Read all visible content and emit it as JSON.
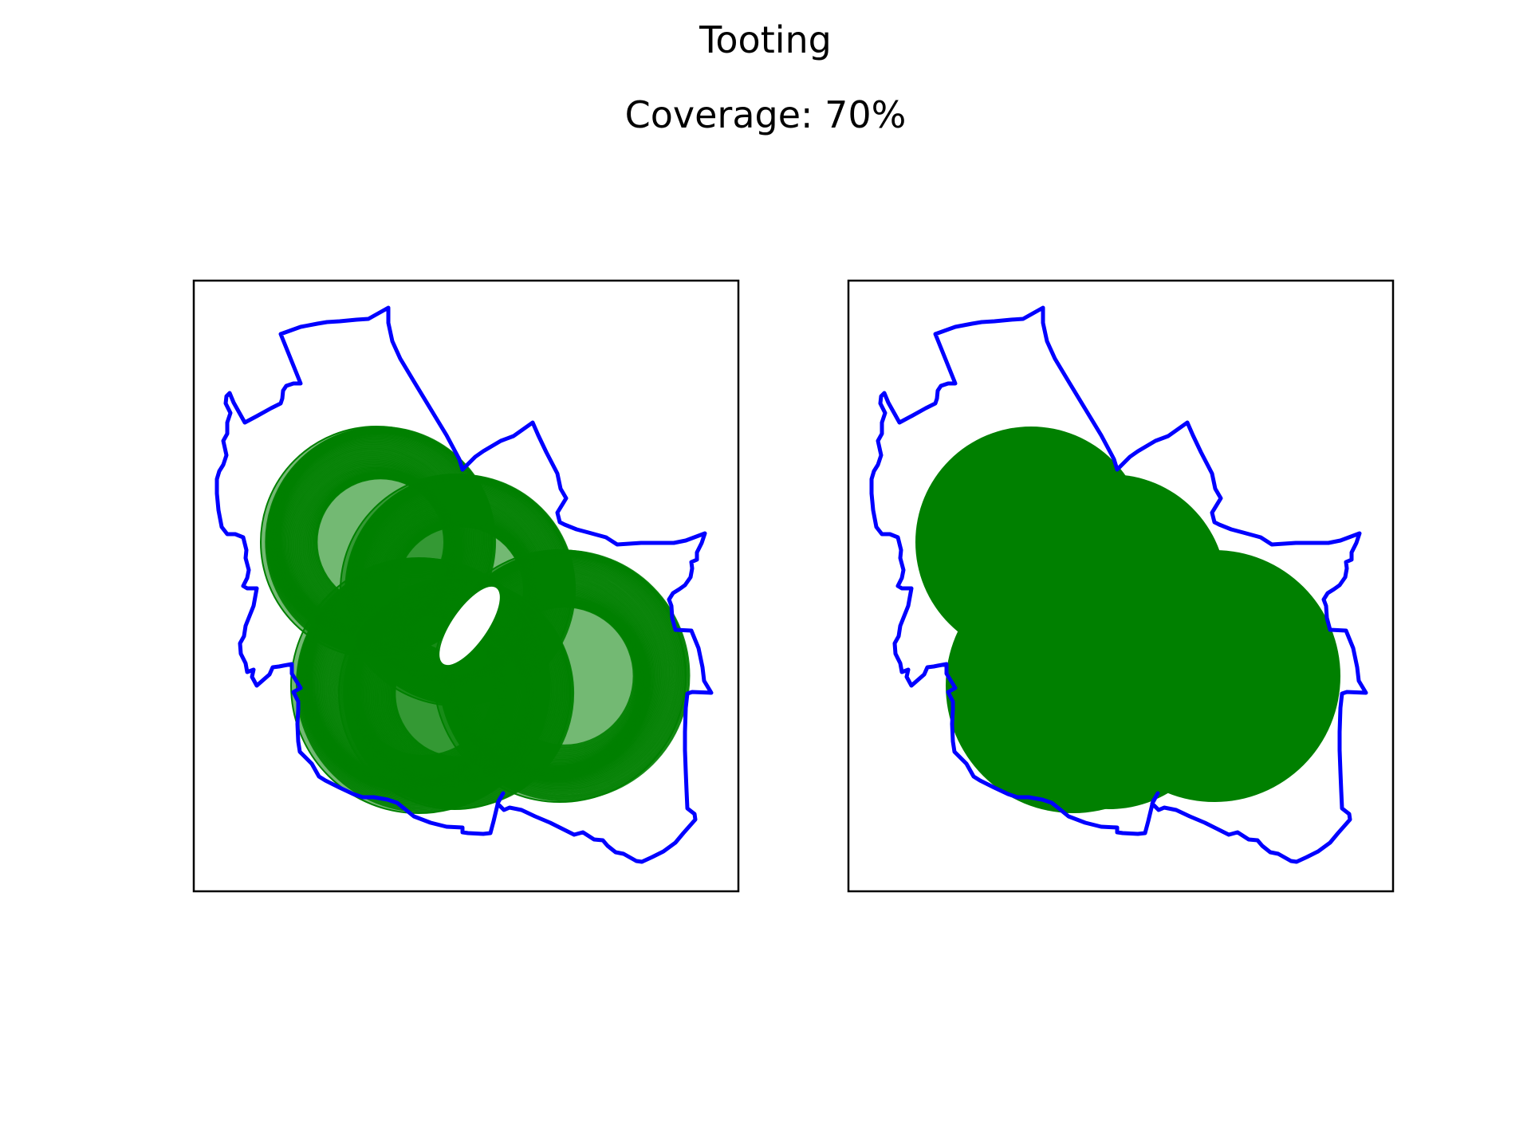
{
  "figure": {
    "title": "Tooting",
    "subtitle": "Coverage: 70%"
  },
  "colors": {
    "background": "#ffffff",
    "boundary": "#0000ff",
    "coverage": "#008000",
    "frame": "#000000",
    "text": "#000000"
  },
  "panels": [
    {
      "name": "individual-circles",
      "style": "outlined circles"
    },
    {
      "name": "merged-coverage",
      "style": "merged filled area"
    }
  ]
}
